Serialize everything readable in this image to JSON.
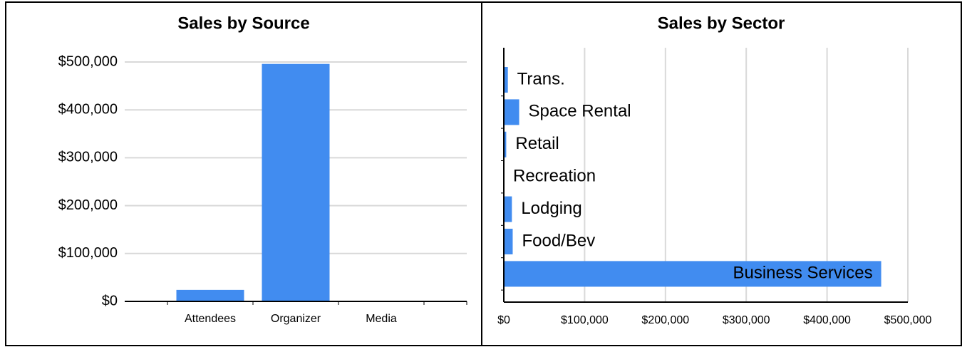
{
  "chart_data": [
    {
      "type": "bar",
      "title": "Sales by Source",
      "categories": [
        "Attendees",
        "Organizer",
        "Media"
      ],
      "values": [
        24000,
        496000,
        0
      ],
      "color": "#418cf0",
      "ylim": [
        0,
        500000
      ],
      "yticks": [
        {
          "value": 0,
          "label": "$0"
        },
        {
          "value": 100000,
          "label": "$100,000"
        },
        {
          "value": 200000,
          "label": "$200,000"
        },
        {
          "value": 300000,
          "label": "$300,000"
        },
        {
          "value": 400000,
          "label": "$400,000"
        },
        {
          "value": 500000,
          "label": "$500,000"
        }
      ],
      "grid": true
    },
    {
      "type": "bar",
      "orientation": "horizontal",
      "title": "Sales by Sector",
      "categories": [
        "Trans.",
        "Space Rental",
        "Retail",
        "Recreation",
        "Lodging",
        "Food/Bev",
        "Business Services"
      ],
      "values": [
        5000,
        19000,
        3000,
        0,
        10000,
        11000,
        467000
      ],
      "color": "#418cf0",
      "xlim": [
        0,
        500000
      ],
      "xticks": [
        {
          "value": 0,
          "label": "$0"
        },
        {
          "value": 100000,
          "label": "$100,000"
        },
        {
          "value": 200000,
          "label": "$200,000"
        },
        {
          "value": 300000,
          "label": "$300,000"
        },
        {
          "value": 400000,
          "label": "$400,000"
        },
        {
          "value": 500000,
          "label": "$500,000"
        }
      ],
      "grid": true
    }
  ]
}
